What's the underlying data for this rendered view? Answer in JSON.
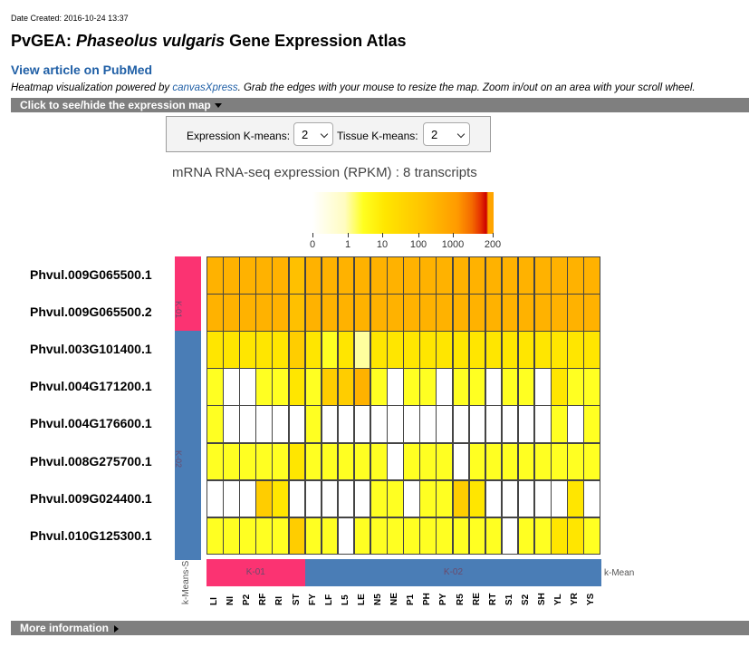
{
  "header": {
    "date_created": "Date Created: 2016-10-24 13:37",
    "title_prefix": "PvGEA: ",
    "title_italic": "Phaseolus vulgaris",
    "title_suffix": " Gene Expression Atlas",
    "pubmed_link": "View article on PubMed",
    "desc_prefix": "Heatmap visualization powered by ",
    "desc_link": "canvasXpress",
    "desc_suffix": ". Grab the edges with your mouse to resize the map. Zoom in/out on an area with your scroll wheel."
  },
  "toggle_expression_map": "Click to see/hide the expression map",
  "more_information": "More information",
  "kmeans": {
    "expression_label": "Expression K-means:",
    "expression_value": "2",
    "tissue_label": "Tissue K-means:",
    "tissue_value": "2"
  },
  "heatmap": {
    "title": "mRNA RNA-seq expression (RPKM) : 8 transcripts",
    "scale_labels": [
      "0",
      "1",
      "10",
      "100",
      "1000",
      "200"
    ],
    "row_cluster_labels": [
      "K-01",
      "K-02"
    ],
    "col_cluster_labels": [
      "K-01",
      "K-02"
    ],
    "row_cluster_axis_label": "k-Means-S",
    "col_cluster_axis_label": "k-Mean",
    "colors": {
      "cluster1": "#fb3372",
      "cluster2": "#4a7db6"
    },
    "rows": [
      "Phvul.009G065500.1",
      "Phvul.009G065500.2",
      "Phvul.003G101400.1",
      "Phvul.004G171200.1",
      "Phvul.004G176600.1",
      "Phvul.008G275700.1",
      "Phvul.009G024400.1",
      "Phvul.010G125300.1"
    ],
    "columns": [
      "LI",
      "NI",
      "P2",
      "RF",
      "RI",
      "ST",
      "FY",
      "LF",
      "L5",
      "LE",
      "N5",
      "NE",
      "P1",
      "PH",
      "PY",
      "R5",
      "RE",
      "RT",
      "S1",
      "S2",
      "SH",
      "YL",
      "YR",
      "YS"
    ],
    "levels": [
      [
        5,
        5,
        5,
        5,
        5,
        6,
        5,
        5,
        5,
        5,
        5,
        5,
        5,
        5,
        5,
        5,
        5,
        5,
        5,
        5,
        5,
        5,
        5,
        5
      ],
      [
        5,
        5,
        5,
        5,
        5,
        6,
        5,
        5,
        5,
        5,
        5,
        5,
        5,
        5,
        5,
        5,
        5,
        5,
        5,
        5,
        5,
        5,
        5,
        5
      ],
      [
        3,
        3,
        3,
        3,
        3,
        4,
        3,
        2,
        3,
        1,
        3,
        3,
        3,
        3,
        3,
        3,
        3,
        3,
        3,
        3,
        3,
        3,
        3,
        3
      ],
      [
        2,
        0,
        0,
        2,
        2,
        3,
        2,
        4,
        4,
        5,
        2,
        0,
        2,
        2,
        0,
        2,
        2,
        0,
        2,
        2,
        0,
        3,
        2,
        2
      ],
      [
        2,
        0,
        0,
        0,
        0,
        0,
        2,
        0,
        0,
        0,
        0,
        0,
        0,
        0,
        0,
        0,
        0,
        0,
        0,
        0,
        0,
        2,
        0,
        2
      ],
      [
        2,
        2,
        2,
        2,
        2,
        3,
        2,
        2,
        2,
        2,
        2,
        0,
        2,
        2,
        2,
        0,
        2,
        2,
        2,
        2,
        2,
        2,
        2,
        2
      ],
      [
        0,
        0,
        0,
        4,
        3,
        0,
        0,
        0,
        0,
        0,
        2,
        2,
        0,
        2,
        2,
        4,
        3,
        0,
        0,
        0,
        0,
        0,
        3,
        0
      ],
      [
        2,
        2,
        2,
        2,
        2,
        4,
        2,
        2,
        0,
        2,
        2,
        2,
        2,
        2,
        2,
        2,
        2,
        2,
        0,
        2,
        2,
        3,
        3,
        2
      ]
    ]
  }
}
